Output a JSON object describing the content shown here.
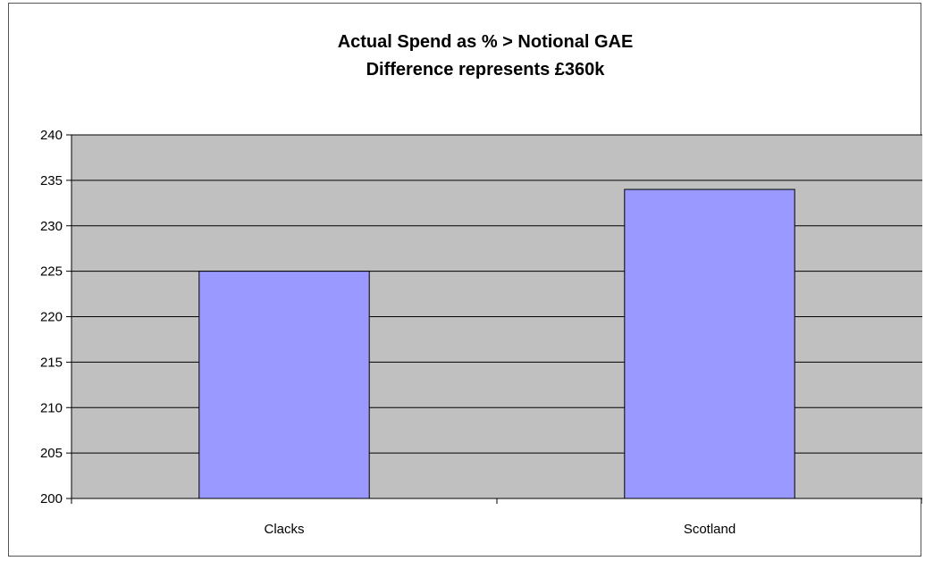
{
  "chart_data": {
    "type": "bar",
    "title": [
      "Actual Spend as % > Notional GAE",
      "Difference represents £360k"
    ],
    "categories": [
      "Clacks",
      "Scotland"
    ],
    "values": [
      225,
      234
    ],
    "xlabel": "",
    "ylabel": "",
    "ylim": [
      200,
      240
    ],
    "yticks": [
      200,
      205,
      210,
      215,
      220,
      225,
      230,
      235,
      240
    ],
    "grid": true,
    "legend": "none",
    "colors": {
      "bar_fill": "#9999ff",
      "bar_stroke": "#000000",
      "plot_background": "#c0c0c0",
      "gridline": "#000000"
    }
  }
}
